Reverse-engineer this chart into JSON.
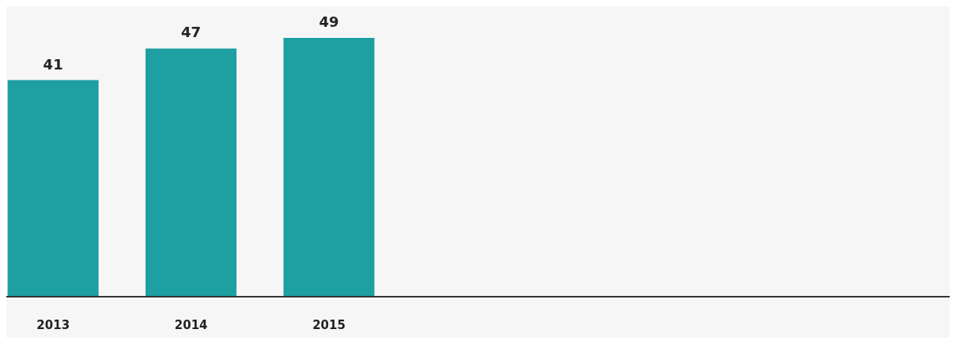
{
  "chart_data": {
    "type": "bar",
    "categories": [
      "2013",
      "2014",
      "2015",
      null,
      null,
      null,
      null
    ],
    "values": [
      41,
      47,
      49,
      null,
      null,
      null,
      null
    ],
    "color": "#1e9fa1",
    "data_labels": true
  }
}
